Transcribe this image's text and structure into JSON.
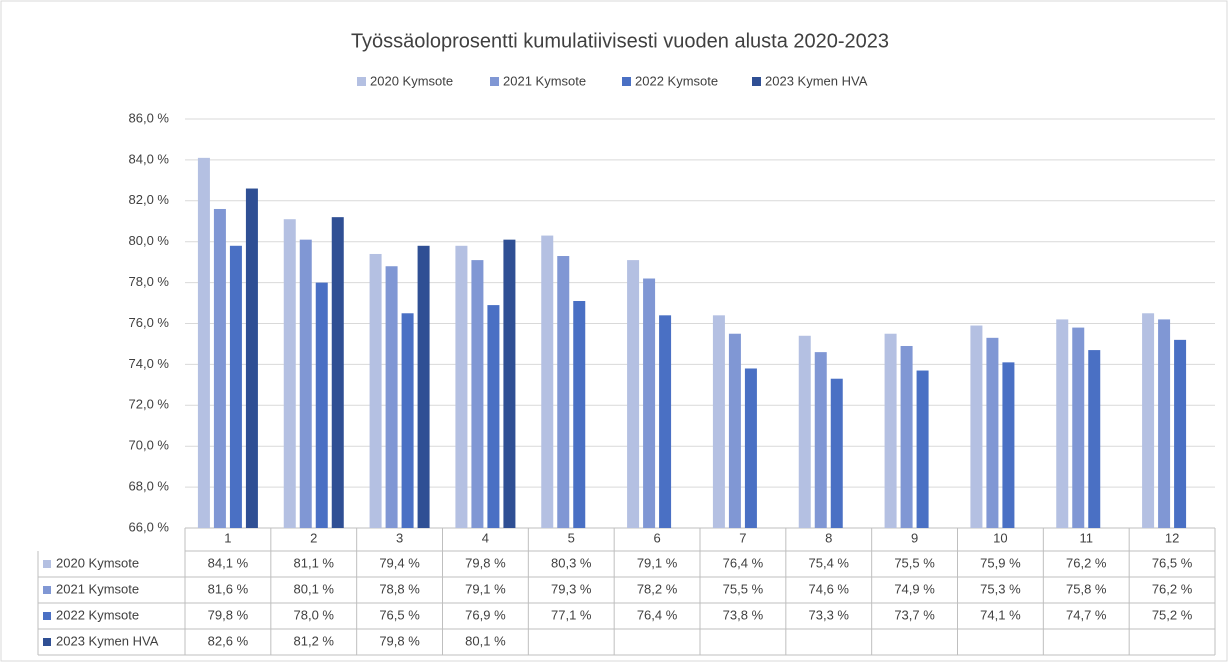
{
  "chart_data": {
    "type": "bar",
    "title": "Työssäoloprosentti kumulatiivisesti vuoden alusta 2020-2023",
    "categories": [
      "1",
      "2",
      "3",
      "4",
      "5",
      "6",
      "7",
      "8",
      "9",
      "10",
      "11",
      "12"
    ],
    "series": [
      {
        "name": "2020 Kymsote",
        "color": "#b4c0e2",
        "values": [
          84.1,
          81.1,
          79.4,
          79.8,
          80.3,
          79.1,
          76.4,
          75.4,
          75.5,
          75.9,
          76.2,
          76.5
        ],
        "value_labels": [
          "84,1 %",
          "81,1 %",
          "79,4 %",
          "79,8 %",
          "80,3 %",
          "79,1 %",
          "76,4 %",
          "75,4 %",
          "75,5 %",
          "75,9 %",
          "76,2 %",
          "76,5 %"
        ]
      },
      {
        "name": "2021 Kymsote",
        "color": "#8097d4",
        "values": [
          81.6,
          80.1,
          78.8,
          79.1,
          79.3,
          78.2,
          75.5,
          74.6,
          74.9,
          75.3,
          75.8,
          76.2
        ],
        "value_labels": [
          "81,6 %",
          "80,1 %",
          "78,8 %",
          "79,1 %",
          "79,3 %",
          "78,2 %",
          "75,5 %",
          "74,6 %",
          "74,9 %",
          "75,3 %",
          "75,8 %",
          "76,2 %"
        ]
      },
      {
        "name": "2022 Kymsote",
        "color": "#4a70c4",
        "values": [
          79.8,
          78.0,
          76.5,
          76.9,
          77.1,
          76.4,
          73.8,
          73.3,
          73.7,
          74.1,
          74.7,
          75.2
        ],
        "value_labels": [
          "79,8 %",
          "78,0 %",
          "76,5 %",
          "76,9 %",
          "77,1 %",
          "76,4 %",
          "73,8 %",
          "73,3 %",
          "73,7 %",
          "74,1 %",
          "74,7 %",
          "75,2 %"
        ]
      },
      {
        "name": "2023 Kymen HVA",
        "color": "#2f4f94",
        "values": [
          82.6,
          81.2,
          79.8,
          80.1,
          null,
          null,
          null,
          null,
          null,
          null,
          null,
          null
        ],
        "value_labels": [
          "82,6 %",
          "81,2 %",
          "79,8 %",
          "80,1 %",
          null,
          null,
          null,
          null,
          null,
          null,
          null,
          null
        ]
      }
    ],
    "ylim": [
      66,
      86
    ],
    "yticks": [
      {
        "value": 66,
        "label": "66,0 %"
      },
      {
        "value": 68,
        "label": "68,0 %"
      },
      {
        "value": 70,
        "label": "70,0 %"
      },
      {
        "value": 72,
        "label": "72,0 %"
      },
      {
        "value": 74,
        "label": "74,0 %"
      },
      {
        "value": 76,
        "label": "76,0 %"
      },
      {
        "value": 78,
        "label": "78,0 %"
      },
      {
        "value": 80,
        "label": "80,0 %"
      },
      {
        "value": 82,
        "label": "82,0 %"
      },
      {
        "value": 84,
        "label": "84,0 %"
      },
      {
        "value": 86,
        "label": "86,0 %"
      }
    ],
    "grid": true
  }
}
